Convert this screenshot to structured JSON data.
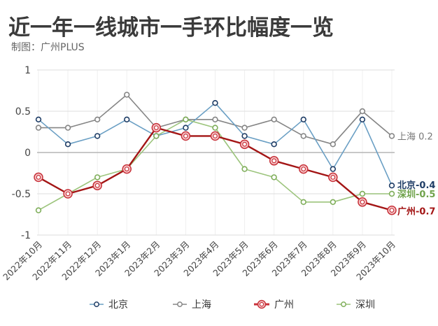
{
  "header": {
    "title": "近一年一线城市一手环比幅度一览",
    "subtitle": "制图：广州PLUS"
  },
  "chart_data": {
    "type": "line",
    "title": "近一年一线城市一手环比幅度一览",
    "subtitle": "制图：广州PLUS",
    "xlabel": "",
    "ylabel": "",
    "ylim": [
      -1,
      1
    ],
    "yticks": [
      1,
      0.5,
      0,
      -0.5,
      -1
    ],
    "ytick_labels": [
      "1",
      "0.5",
      "0",
      "-0.5",
      "-1"
    ],
    "grid": true,
    "legend_position": "bottom",
    "categories": [
      "2022年10月",
      "2022年11月",
      "2022年12月",
      "2023年1月",
      "2023年2月",
      "2023年3月",
      "2023年4月",
      "2023年5月",
      "2023年6月",
      "2023年7月",
      "2023年8月",
      "2023年9月",
      "2023年10月"
    ],
    "series": [
      {
        "name": "北京",
        "values": [
          0.4,
          0.1,
          0.2,
          0.4,
          0.2,
          0.3,
          0.6,
          0.2,
          0.1,
          0.4,
          -0.2,
          0.4,
          -0.4
        ],
        "line_color": "#6a9fc4",
        "marker_color": "#1f3d66",
        "end_label": "北京-0.4",
        "end_label_color": "#1f3d66",
        "end_label_bold": true
      },
      {
        "name": "上海",
        "values": [
          0.3,
          0.3,
          0.4,
          0.7,
          0.3,
          0.4,
          0.4,
          0.3,
          0.4,
          0.2,
          0.1,
          0.5,
          0.2
        ],
        "line_color": "#858585",
        "marker_color": "#858585",
        "end_label": "上海 0.2",
        "end_label_color": "#777777",
        "end_label_bold": false
      },
      {
        "name": "广州",
        "values": [
          -0.3,
          -0.5,
          -0.4,
          -0.2,
          0.3,
          0.2,
          0.2,
          0.1,
          -0.1,
          -0.2,
          -0.3,
          -0.6,
          -0.7
        ],
        "line_color": "#a31515",
        "marker_color": "#c8323a",
        "end_label": "广州-0.7",
        "end_label_color": "#a31515",
        "end_label_bold": true
      },
      {
        "name": "深圳",
        "values": [
          -0.7,
          -0.5,
          -0.3,
          -0.2,
          0.2,
          0.4,
          0.3,
          -0.2,
          -0.3,
          -0.6,
          -0.6,
          -0.5,
          -0.5
        ],
        "line_color": "#9cc47c",
        "marker_color": "#7fae5a",
        "end_label": "深圳-0.5",
        "end_label_color": "#6fa24a",
        "end_label_bold": true
      }
    ]
  },
  "legend": {
    "items": [
      {
        "label": "北京",
        "icon": "line-circle-marker-icon"
      },
      {
        "label": "上海",
        "icon": "line-circle-marker-icon"
      },
      {
        "label": "广州",
        "icon": "line-double-circle-marker-icon"
      },
      {
        "label": "深圳",
        "icon": "line-circle-marker-icon"
      }
    ]
  }
}
